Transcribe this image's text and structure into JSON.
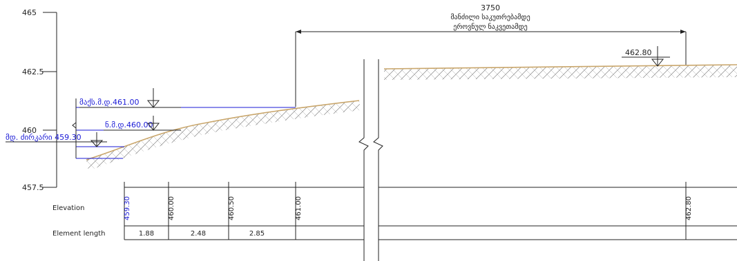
{
  "y_axis": {
    "ticks": [
      "465",
      "462.5",
      "460",
      "457.5"
    ]
  },
  "dimension": {
    "value": "3750",
    "line1": "მანძილი საკუთრებამდე",
    "line2": "ეროვნულ ნაკვეთამდე"
  },
  "levels": [
    {
      "label": "მაქს.მ.დ.461.00",
      "color": "#1a1ad6"
    },
    {
      "label": "ნ.მ.დ.460.00",
      "color": "#1a1ad6"
    },
    {
      "label": "მდ. ძირკარი 459.30",
      "color": "#1a1ad6"
    }
  ],
  "right_level": {
    "label": "462.80"
  },
  "table": {
    "elevation_label": "Elevation",
    "element_length_label": "Element length",
    "elevations": [
      {
        "value": "459.30",
        "color": "#1a1ad6"
      },
      {
        "value": "460.00",
        "color": "#222222"
      },
      {
        "value": "460.50",
        "color": "#222222"
      },
      {
        "value": "461.00",
        "color": "#222222"
      },
      {
        "value": "462.80",
        "color": "#222222"
      }
    ],
    "lengths": [
      "1.88",
      "2.48",
      "2.85"
    ]
  },
  "colors": {
    "ground": "#c9a66b",
    "water_level": "#1a1ad6",
    "line": "#222222"
  }
}
